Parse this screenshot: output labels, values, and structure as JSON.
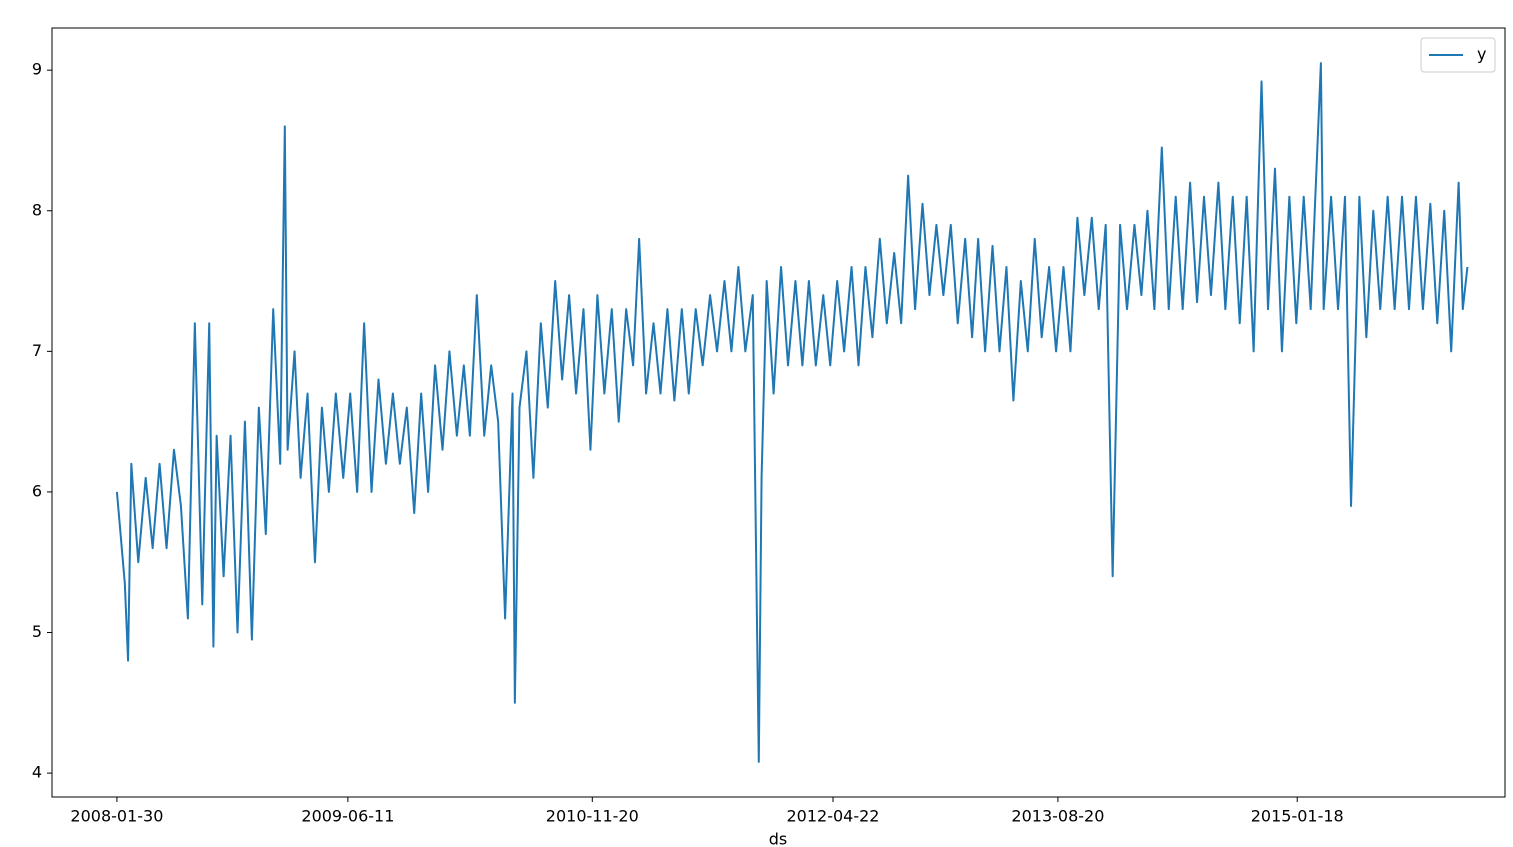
{
  "chart_data": {
    "type": "line",
    "xlabel": "ds",
    "legend": "upper right",
    "x": [
      "2008-01-30",
      "2008-02-16",
      "2008-02-23",
      "2008-03-01",
      "2008-03-16",
      "2008-04-01",
      "2008-04-16",
      "2008-05-01",
      "2008-05-16",
      "2008-06-01",
      "2008-06-16",
      "2008-07-01",
      "2008-07-16",
      "2008-08-01",
      "2008-08-16",
      "2008-08-25",
      "2008-09-01",
      "2008-09-16",
      "2008-10-01",
      "2008-10-16",
      "2008-11-01",
      "2008-11-16",
      "2008-12-01",
      "2008-12-16",
      "2009-01-01",
      "2009-01-16",
      "2009-01-26",
      "2009-02-01",
      "2009-02-16",
      "2009-03-01",
      "2009-03-16",
      "2009-04-01",
      "2009-04-16",
      "2009-05-01",
      "2009-05-16",
      "2009-06-01",
      "2009-06-16",
      "2009-07-01",
      "2009-07-16",
      "2009-08-01",
      "2009-08-16",
      "2009-09-01",
      "2009-09-16",
      "2009-10-01",
      "2009-10-16",
      "2009-11-01",
      "2009-11-16",
      "2009-12-01",
      "2009-12-16",
      "2010-01-01",
      "2010-01-16",
      "2010-02-01",
      "2010-02-16",
      "2010-03-01",
      "2010-03-16",
      "2010-04-01",
      "2010-04-16",
      "2010-05-01",
      "2010-05-16",
      "2010-06-01",
      "2010-06-06",
      "2010-06-16",
      "2010-07-01",
      "2010-07-16",
      "2010-08-01",
      "2010-08-16",
      "2010-09-01",
      "2010-09-16",
      "2010-10-01",
      "2010-10-16",
      "2010-11-01",
      "2010-11-16",
      "2010-12-01",
      "2010-12-16",
      "2011-01-01",
      "2011-01-16",
      "2011-02-01",
      "2011-02-16",
      "2011-03-01",
      "2011-03-16",
      "2011-04-01",
      "2011-04-16",
      "2011-05-01",
      "2011-05-16",
      "2011-06-01",
      "2011-06-16",
      "2011-07-01",
      "2011-07-16",
      "2011-08-01",
      "2011-08-16",
      "2011-09-01",
      "2011-09-16",
      "2011-10-01",
      "2011-10-16",
      "2011-11-01",
      "2011-11-14",
      "2011-11-20",
      "2011-12-01",
      "2011-12-16",
      "2012-01-01",
      "2012-01-16",
      "2012-02-01",
      "2012-02-16",
      "2012-03-01",
      "2012-03-16",
      "2012-04-01",
      "2012-04-16",
      "2012-05-01",
      "2012-05-16",
      "2012-06-01",
      "2012-06-16",
      "2012-07-01",
      "2012-07-16",
      "2012-08-01",
      "2012-08-16",
      "2012-09-01",
      "2012-09-16",
      "2012-10-01",
      "2012-10-16",
      "2012-11-01",
      "2012-11-16",
      "2012-12-01",
      "2012-12-16",
      "2013-01-01",
      "2013-01-16",
      "2013-02-01",
      "2013-02-16",
      "2013-03-01",
      "2013-03-16",
      "2013-04-01",
      "2013-04-16",
      "2013-05-01",
      "2013-05-16",
      "2013-06-01",
      "2013-06-16",
      "2013-07-01",
      "2013-07-16",
      "2013-08-01",
      "2013-08-16",
      "2013-09-01",
      "2013-09-16",
      "2013-10-01",
      "2013-10-16",
      "2013-11-01",
      "2013-11-16",
      "2013-12-01",
      "2013-12-16",
      "2014-01-01",
      "2014-01-16",
      "2014-02-01",
      "2014-02-16",
      "2014-03-01",
      "2014-03-16",
      "2014-04-01",
      "2014-04-16",
      "2014-05-01",
      "2014-05-16",
      "2014-06-01",
      "2014-06-16",
      "2014-07-01",
      "2014-07-16",
      "2014-08-01",
      "2014-08-16",
      "2014-09-01",
      "2014-09-16",
      "2014-10-01",
      "2014-10-16",
      "2014-11-02",
      "2014-11-16",
      "2014-12-01",
      "2014-12-16",
      "2015-01-01",
      "2015-01-16",
      "2015-02-01",
      "2015-02-16",
      "2015-03-10",
      "2015-03-16",
      "2015-04-01",
      "2015-04-16",
      "2015-05-01",
      "2015-05-14",
      "2015-06-01",
      "2015-06-16",
      "2015-07-01",
      "2015-07-16",
      "2015-08-01",
      "2015-08-16",
      "2015-09-01",
      "2015-09-16",
      "2015-10-01",
      "2015-10-16",
      "2015-11-01",
      "2015-11-16",
      "2015-12-01",
      "2015-12-16",
      "2016-01-01",
      "2016-01-10",
      "2016-01-20"
    ],
    "series": [
      {
        "name": "y",
        "color": "#1f77b4",
        "values": [
          6.0,
          5.35,
          4.8,
          6.2,
          5.5,
          6.1,
          5.6,
          6.2,
          5.6,
          6.3,
          5.9,
          5.1,
          7.2,
          5.2,
          7.2,
          4.9,
          6.4,
          5.4,
          6.4,
          5.0,
          6.5,
          4.95,
          6.6,
          5.7,
          7.3,
          6.2,
          8.6,
          6.3,
          7.0,
          6.1,
          6.7,
          5.5,
          6.6,
          6.0,
          6.7,
          6.1,
          6.7,
          6.0,
          7.2,
          6.0,
          6.8,
          6.2,
          6.7,
          6.2,
          6.6,
          5.85,
          6.7,
          6.0,
          6.9,
          6.3,
          7.0,
          6.4,
          6.9,
          6.4,
          7.4,
          6.4,
          6.9,
          6.5,
          5.1,
          6.7,
          4.5,
          6.6,
          7.0,
          6.1,
          7.2,
          6.6,
          7.5,
          6.8,
          7.4,
          6.7,
          7.3,
          6.3,
          7.4,
          6.7,
          7.3,
          6.5,
          7.3,
          6.9,
          7.8,
          6.7,
          7.2,
          6.7,
          7.3,
          6.65,
          7.3,
          6.7,
          7.3,
          6.9,
          7.4,
          7.0,
          7.5,
          7.0,
          7.6,
          7.0,
          7.4,
          4.08,
          6.1,
          7.5,
          6.7,
          7.6,
          6.9,
          7.5,
          6.9,
          7.5,
          6.9,
          7.4,
          6.9,
          7.5,
          7.0,
          7.6,
          6.9,
          7.6,
          7.1,
          7.8,
          7.2,
          7.7,
          7.2,
          8.25,
          7.3,
          8.05,
          7.4,
          7.9,
          7.4,
          7.9,
          7.2,
          7.8,
          7.1,
          7.8,
          7.0,
          7.75,
          7.0,
          7.6,
          6.65,
          7.5,
          7.0,
          7.8,
          7.1,
          7.6,
          7.0,
          7.6,
          7.0,
          7.95,
          7.4,
          7.95,
          7.3,
          7.9,
          5.4,
          7.9,
          7.3,
          7.9,
          7.4,
          8.0,
          7.3,
          8.45,
          7.3,
          8.1,
          7.3,
          8.2,
          7.35,
          8.1,
          7.4,
          8.2,
          7.3,
          8.1,
          7.2,
          8.1,
          7.0,
          8.92,
          7.3,
          8.3,
          7.0,
          8.1,
          7.2,
          8.1,
          7.3,
          9.05,
          7.3,
          8.1,
          7.3,
          8.1,
          5.9,
          8.1,
          7.1,
          8.0,
          7.3,
          8.1,
          7.3,
          8.1,
          7.3,
          8.1,
          7.3,
          8.05,
          7.2,
          8.0,
          7.0,
          8.2,
          7.3,
          7.6
        ]
      }
    ],
    "xlim": [
      "2007-09-12",
      "2016-04-10"
    ],
    "xticks": [
      "2008-01-30",
      "2009-06-11",
      "2010-11-20",
      "2012-04-22",
      "2013-08-20",
      "2015-01-18"
    ],
    "ylim": [
      3.83,
      9.3
    ],
    "yticks": [
      4,
      5,
      6,
      7,
      8,
      9
    ]
  }
}
